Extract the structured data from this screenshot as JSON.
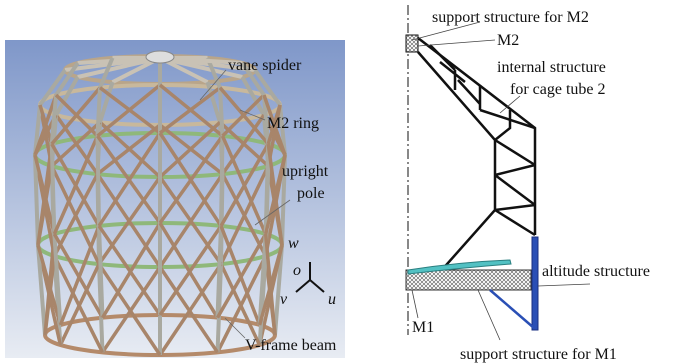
{
  "left_panel": {
    "labels": {
      "vane_spider": "vane spider",
      "m2_ring": "M2 ring",
      "upright_1": "upright",
      "upright_2": "pole",
      "v_frame_beam": "V-frame beam"
    },
    "axes": {
      "w": "w",
      "o": "o",
      "v": "v",
      "u": "u"
    }
  },
  "right_panel": {
    "labels": {
      "support_m2": "support structure for M2",
      "m2": "M2",
      "internal_1": "internal structure",
      "internal_2": "for cage tube 2",
      "altitude": "altitude structure",
      "m1": "M1",
      "support_m1": "support structure for M1"
    }
  }
}
